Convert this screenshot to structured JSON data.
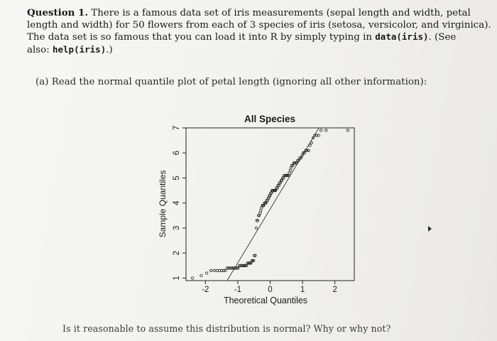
{
  "question": {
    "number_label": "Question 1.",
    "line1": " There is a famous data set of iris measurements (sepal length and width, petal",
    "line2": "length and width) for 50 flowers from each of 3 species of iris (setosa, versicolor, and virginica).",
    "line3_prefix": "The data set is so famous that you can load it into R by simply typing in ",
    "line3_code": "data(iris)",
    "line3_suffix": ". (See",
    "line4_prefix": "also: ",
    "line4_code": "help(iris)",
    "line4_suffix": ".)"
  },
  "part_a": {
    "text": "(a) Read the normal quantile plot of petal length (ignoring all other information):"
  },
  "followup": {
    "text": "Is it reasonable to assume this distribution is normal? Why or why not?"
  },
  "chart_data": {
    "type": "scatter",
    "title": "All Species",
    "xlabel": "Theoretical Quantiles",
    "ylabel": "Sample Quantiles",
    "xlim": [
      -2.6,
      2.6
    ],
    "ylim": [
      0.9,
      7.0
    ],
    "x_ticks": [
      "-2",
      "-1",
      "0",
      "1",
      "2"
    ],
    "y_ticks": [
      "1",
      "2",
      "3",
      "4",
      "5",
      "6",
      "7"
    ],
    "reference_line": {
      "intercept": 3.76,
      "slope": 2.15
    },
    "points": [
      [
        -2.4,
        1.0
      ],
      [
        -2.13,
        1.1
      ],
      [
        -1.96,
        1.2
      ],
      [
        -1.83,
        1.3
      ],
      [
        -1.73,
        1.3
      ],
      [
        -1.64,
        1.3
      ],
      [
        -1.57,
        1.3
      ],
      [
        -1.5,
        1.3
      ],
      [
        -1.44,
        1.3
      ],
      [
        -1.38,
        1.3
      ],
      [
        -1.33,
        1.4
      ],
      [
        -1.28,
        1.4
      ],
      [
        -1.23,
        1.4
      ],
      [
        -1.19,
        1.4
      ],
      [
        -1.14,
        1.4
      ],
      [
        -1.1,
        1.4
      ],
      [
        -1.06,
        1.4
      ],
      [
        -1.02,
        1.4
      ],
      [
        -0.99,
        1.4
      ],
      [
        -0.95,
        1.5
      ],
      [
        -0.92,
        1.5
      ],
      [
        -0.88,
        1.5
      ],
      [
        -0.85,
        1.5
      ],
      [
        -0.82,
        1.5
      ],
      [
        -0.79,
        1.5
      ],
      [
        -0.76,
        1.5
      ],
      [
        -0.73,
        1.5
      ],
      [
        -0.7,
        1.6
      ],
      [
        -0.67,
        1.6
      ],
      [
        -0.64,
        1.6
      ],
      [
        -0.62,
        1.6
      ],
      [
        -0.59,
        1.6
      ],
      [
        -0.56,
        1.7
      ],
      [
        -0.54,
        1.7
      ],
      [
        -0.51,
        1.7
      ],
      [
        -0.49,
        1.9
      ],
      [
        -0.46,
        1.9
      ],
      [
        -0.43,
        3.0
      ],
      [
        -0.41,
        3.3
      ],
      [
        -0.39,
        3.3
      ],
      [
        -0.36,
        3.5
      ],
      [
        -0.34,
        3.5
      ],
      [
        -0.31,
        3.6
      ],
      [
        -0.29,
        3.7
      ],
      [
        -0.27,
        3.8
      ],
      [
        -0.24,
        3.9
      ],
      [
        -0.22,
        3.9
      ],
      [
        -0.2,
        3.9
      ],
      [
        -0.17,
        4.0
      ],
      [
        -0.15,
        4.0
      ],
      [
        -0.13,
        4.0
      ],
      [
        -0.11,
        4.1
      ],
      [
        -0.08,
        4.1
      ],
      [
        -0.06,
        4.2
      ],
      [
        -0.04,
        4.2
      ],
      [
        -0.02,
        4.3
      ],
      [
        0.0,
        4.3
      ],
      [
        0.02,
        4.4
      ],
      [
        0.04,
        4.4
      ],
      [
        0.06,
        4.5
      ],
      [
        0.08,
        4.5
      ],
      [
        0.11,
        4.5
      ],
      [
        0.13,
        4.5
      ],
      [
        0.15,
        4.5
      ],
      [
        0.17,
        4.5
      ],
      [
        0.2,
        4.6
      ],
      [
        0.22,
        4.6
      ],
      [
        0.24,
        4.7
      ],
      [
        0.27,
        4.7
      ],
      [
        0.29,
        4.8
      ],
      [
        0.31,
        4.8
      ],
      [
        0.34,
        4.9
      ],
      [
        0.36,
        4.9
      ],
      [
        0.39,
        5.0
      ],
      [
        0.41,
        5.0
      ],
      [
        0.43,
        5.1
      ],
      [
        0.46,
        5.1
      ],
      [
        0.49,
        5.1
      ],
      [
        0.51,
        5.1
      ],
      [
        0.54,
        5.1
      ],
      [
        0.56,
        5.1
      ],
      [
        0.59,
        5.2
      ],
      [
        0.62,
        5.3
      ],
      [
        0.64,
        5.4
      ],
      [
        0.67,
        5.5
      ],
      [
        0.7,
        5.5
      ],
      [
        0.73,
        5.6
      ],
      [
        0.76,
        5.6
      ],
      [
        0.79,
        5.6
      ],
      [
        0.82,
        5.6
      ],
      [
        0.85,
        5.7
      ],
      [
        0.88,
        5.7
      ],
      [
        0.92,
        5.8
      ],
      [
        0.95,
        5.8
      ],
      [
        0.99,
        5.9
      ],
      [
        1.02,
        6.0
      ],
      [
        1.06,
        6.0
      ],
      [
        1.1,
        6.1
      ],
      [
        1.14,
        6.1
      ],
      [
        1.19,
        6.1
      ],
      [
        1.23,
        6.3
      ],
      [
        1.28,
        6.4
      ],
      [
        1.33,
        6.6
      ],
      [
        1.38,
        6.7
      ],
      [
        1.44,
        6.7
      ],
      [
        1.5,
        6.7
      ],
      [
        1.57,
        6.9
      ],
      [
        1.73,
        6.9
      ],
      [
        2.4,
        6.9
      ]
    ]
  }
}
